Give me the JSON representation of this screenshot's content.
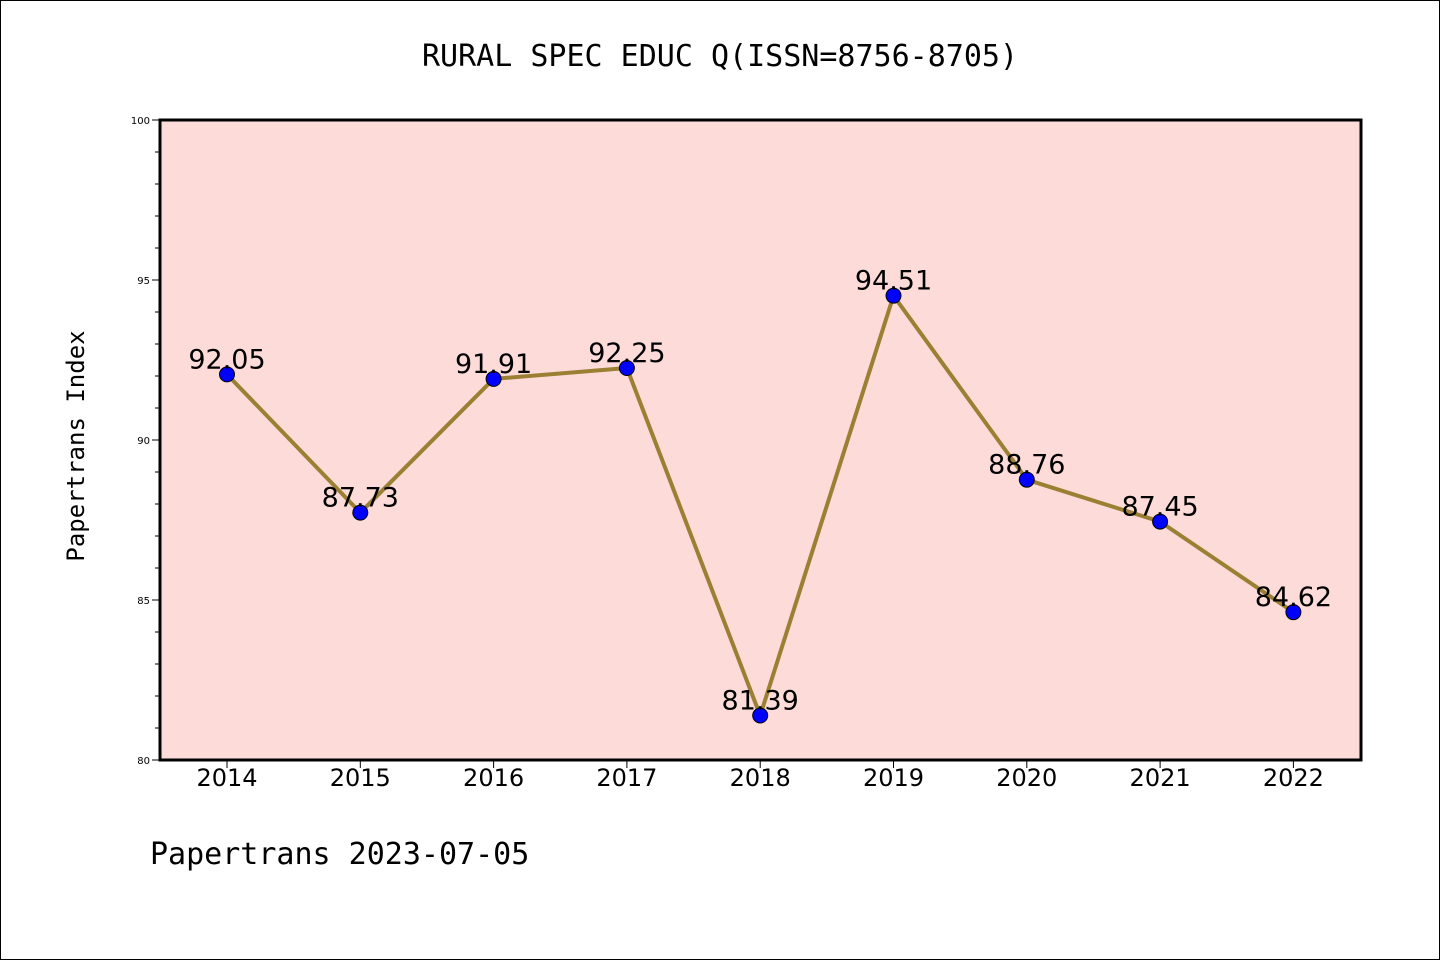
{
  "chart_data": {
    "type": "line",
    "title": "RURAL SPEC EDUC Q(ISSN=8756-8705)",
    "xlabel": "",
    "ylabel": "Papertrans Index",
    "footer": "Papertrans 2023-07-05",
    "categories": [
      "2014",
      "2015",
      "2016",
      "2017",
      "2018",
      "2019",
      "2020",
      "2021",
      "2022"
    ],
    "series": [
      {
        "values": [
          92.05,
          87.73,
          91.91,
          92.25,
          81.39,
          94.51,
          88.76,
          87.45,
          84.62
        ],
        "data_labels": [
          "92.05",
          "87.73",
          "91.91",
          "92.25",
          "81.39",
          "94.51",
          "88.76",
          "87.45",
          "84.62"
        ]
      }
    ],
    "ylim": [
      80,
      100
    ],
    "yticks": [
      "80",
      "85",
      "90",
      "95",
      "100"
    ],
    "grid": false,
    "colors": {
      "plot_background": "#fddbd9",
      "line": "#9b8034",
      "marker": "#0000ff"
    }
  }
}
